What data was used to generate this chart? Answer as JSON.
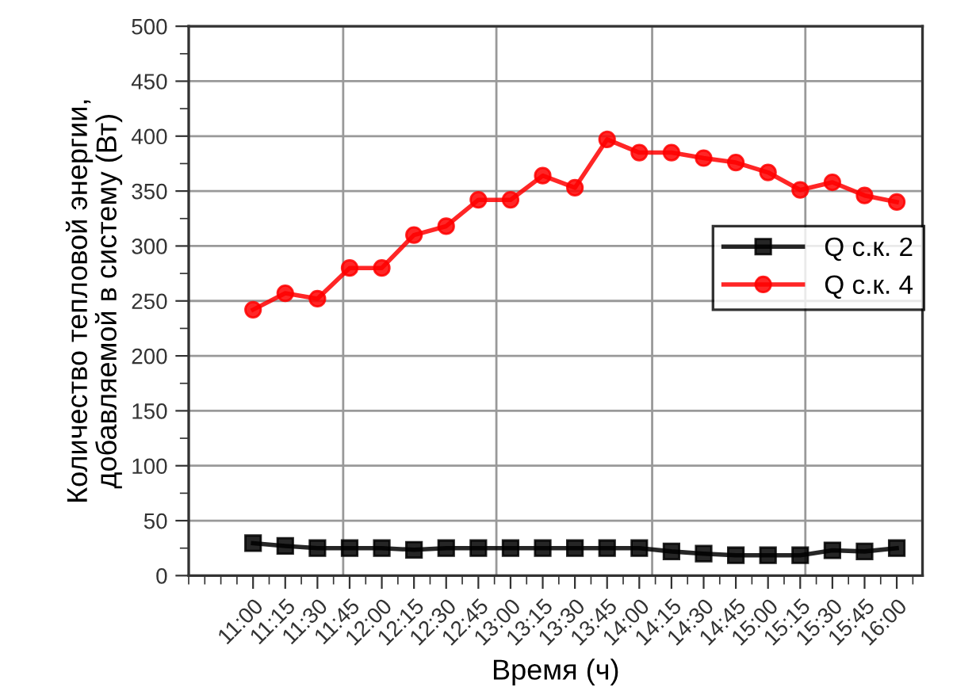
{
  "chart_data": {
    "type": "line",
    "xlabel": "Время (ч)",
    "ylabel": "Количество тепловой энергии,\nдобавляемой в систему (Вт)",
    "x": [
      11.0,
      11.25,
      11.5,
      11.75,
      12.0,
      12.25,
      12.5,
      12.75,
      13.0,
      13.25,
      13.5,
      13.75,
      14.0,
      14.25,
      14.5,
      14.75,
      15.0,
      15.25,
      15.5,
      15.75,
      16.0
    ],
    "series": [
      {
        "name": "Q с.к. 2",
        "color": "#000000",
        "marker": "square",
        "values": [
          29.5,
          27,
          25,
          25,
          25,
          23.5,
          25,
          25,
          25,
          25,
          25,
          25,
          25,
          22,
          20,
          18.5,
          18.5,
          18.5,
          23,
          22,
          25
        ]
      },
      {
        "name": "Q с.к. 4",
        "color": "#ff0000",
        "marker": "circle",
        "values": [
          242,
          257,
          252,
          280,
          280,
          310,
          318,
          342,
          342,
          364,
          353,
          397,
          385,
          385,
          380,
          376,
          367,
          351,
          358,
          346,
          340
        ]
      }
    ],
    "xlim": [
      10.5,
      16.2
    ],
    "xticks": [
      {
        "value": 11.0,
        "label": "11:00"
      },
      {
        "value": 11.25,
        "label": "11:15"
      },
      {
        "value": 11.5,
        "label": "11:30"
      },
      {
        "value": 11.75,
        "label": "11:45"
      },
      {
        "value": 12.0,
        "label": "12:00"
      },
      {
        "value": 12.25,
        "label": "12:15"
      },
      {
        "value": 12.5,
        "label": "12:30"
      },
      {
        "value": 12.75,
        "label": "12:45"
      },
      {
        "value": 13.0,
        "label": "13:00"
      },
      {
        "value": 13.25,
        "label": "13:15"
      },
      {
        "value": 13.5,
        "label": "13:30"
      },
      {
        "value": 13.75,
        "label": "13:45"
      },
      {
        "value": 14.0,
        "label": "14:00"
      },
      {
        "value": 14.25,
        "label": "14:15"
      },
      {
        "value": 14.5,
        "label": "14:30"
      },
      {
        "value": 14.75,
        "label": "14:45"
      },
      {
        "value": 15.0,
        "label": "15:00"
      },
      {
        "value": 15.25,
        "label": "15:15"
      },
      {
        "value": 15.5,
        "label": "15:30"
      },
      {
        "value": 15.75,
        "label": "15:45"
      },
      {
        "value": 16.0,
        "label": "16:00"
      }
    ],
    "ylim": [
      0,
      500
    ],
    "yticks": [
      0,
      50,
      100,
      150,
      200,
      250,
      300,
      350,
      400,
      450,
      500
    ],
    "grid": "y",
    "ref_lines": [
      {
        "axis": "x",
        "value": 11.7,
        "color": "#999999"
      },
      {
        "axis": "x",
        "value": 12.89,
        "color": "#999999"
      },
      {
        "axis": "x",
        "value": 14.1,
        "color": "#999999"
      },
      {
        "axis": "x",
        "value": 15.29,
        "color": "#999999"
      }
    ],
    "legend": "right",
    "line_style": "solid"
  }
}
